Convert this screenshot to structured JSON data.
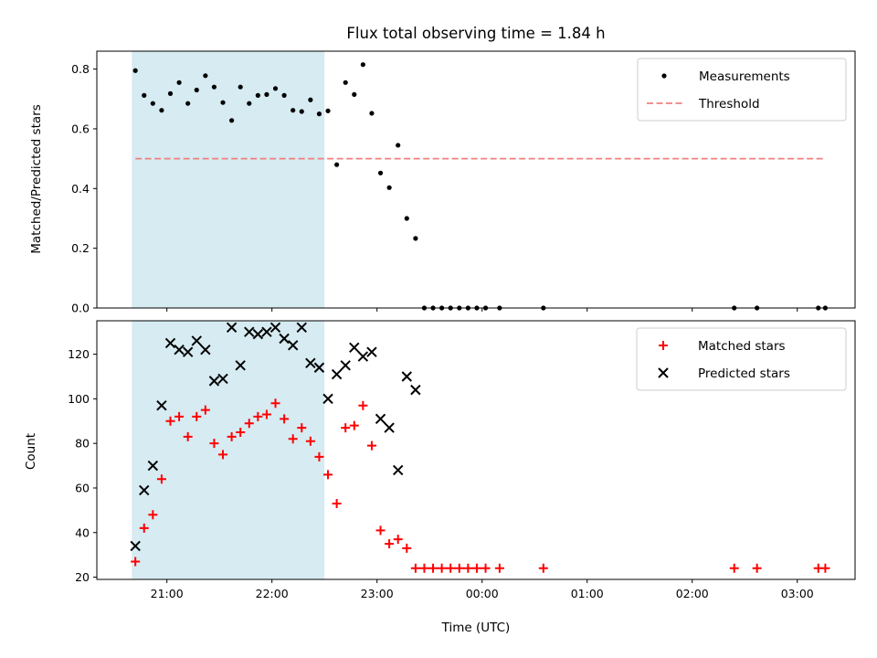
{
  "chart_data": [
    {
      "type": "scatter",
      "title": "Flux total observing time = 1.84 h",
      "xlabel": "",
      "ylabel": "Matched/Predicted stars",
      "ylim": [
        0,
        0.86
      ],
      "yticks": [
        "0.0",
        "0.2",
        "0.4",
        "0.6",
        "0.8"
      ],
      "shaded_region": {
        "x_start": "20:40",
        "x_end": "22:30",
        "color": "#add8e6"
      },
      "grid": false,
      "legend_position": "top-right",
      "series": [
        {
          "name": "Measurements",
          "marker": "dot",
          "color": "#000000",
          "points": [
            [
              "20:42",
              0.795
            ],
            [
              "20:47",
              0.712
            ],
            [
              "20:52",
              0.685
            ],
            [
              "20:57",
              0.662
            ],
            [
              "21:02",
              0.718
            ],
            [
              "21:07",
              0.755
            ],
            [
              "21:12",
              0.685
            ],
            [
              "21:17",
              0.73
            ],
            [
              "21:22",
              0.778
            ],
            [
              "21:27",
              0.74
            ],
            [
              "21:32",
              0.688
            ],
            [
              "21:37",
              0.628
            ],
            [
              "21:42",
              0.74
            ],
            [
              "21:47",
              0.685
            ],
            [
              "21:52",
              0.712
            ],
            [
              "21:57",
              0.715
            ],
            [
              "22:02",
              0.735
            ],
            [
              "22:07",
              0.712
            ],
            [
              "22:12",
              0.662
            ],
            [
              "22:17",
              0.658
            ],
            [
              "22:22",
              0.697
            ],
            [
              "22:27",
              0.65
            ],
            [
              "22:32",
              0.66
            ],
            [
              "22:37",
              0.48
            ],
            [
              "22:42",
              0.755
            ],
            [
              "22:47",
              0.715
            ],
            [
              "22:52",
              0.815
            ],
            [
              "22:57",
              0.652
            ],
            [
              "23:02",
              0.452
            ],
            [
              "23:07",
              0.403
            ],
            [
              "23:12",
              0.545
            ],
            [
              "23:17",
              0.3
            ],
            [
              "23:22",
              0.233
            ],
            [
              "23:27",
              0.0
            ],
            [
              "23:32",
              0.0
            ],
            [
              "23:37",
              0.0
            ],
            [
              "23:42",
              0.0
            ],
            [
              "23:47",
              0.0
            ],
            [
              "23:52",
              0.0
            ],
            [
              "23:57",
              0.0
            ],
            [
              "00:02",
              0.0
            ],
            [
              "00:10",
              0.0
            ],
            [
              "00:35",
              0.0
            ],
            [
              "02:24",
              0.0
            ],
            [
              "02:37",
              0.0
            ],
            [
              "03:12",
              0.0
            ],
            [
              "03:16",
              0.0
            ]
          ]
        },
        {
          "name": "Threshold",
          "marker": "dashed-line",
          "color": "#f08080",
          "points": [
            [
              "20:42",
              0.5
            ],
            [
              "03:16",
              0.5
            ]
          ]
        }
      ]
    },
    {
      "type": "scatter",
      "title": "",
      "xlabel": "Time (UTC)",
      "ylabel": "Count",
      "ylim": [
        19,
        135
      ],
      "yticks": [
        "20",
        "40",
        "60",
        "80",
        "100",
        "120"
      ],
      "xticks": [
        "21:00",
        "22:00",
        "23:00",
        "00:00",
        "01:00",
        "02:00",
        "03:00"
      ],
      "xlim": [
        "20:20",
        "03:33"
      ],
      "shaded_region": {
        "x_start": "20:40",
        "x_end": "22:30",
        "color": "#add8e6"
      },
      "grid": false,
      "legend_position": "top-right",
      "series": [
        {
          "name": "Matched stars",
          "marker": "plus",
          "color": "#ff0000",
          "points": [
            [
              "20:42",
              27
            ],
            [
              "20:47",
              42
            ],
            [
              "20:52",
              48
            ],
            [
              "20:57",
              64
            ],
            [
              "21:02",
              90
            ],
            [
              "21:07",
              92
            ],
            [
              "21:12",
              83
            ],
            [
              "21:17",
              92
            ],
            [
              "21:22",
              95
            ],
            [
              "21:27",
              80
            ],
            [
              "21:32",
              75
            ],
            [
              "21:37",
              83
            ],
            [
              "21:42",
              85
            ],
            [
              "21:47",
              89
            ],
            [
              "21:52",
              92
            ],
            [
              "21:57",
              93
            ],
            [
              "22:02",
              98
            ],
            [
              "22:07",
              91
            ],
            [
              "22:12",
              82
            ],
            [
              "22:17",
              87
            ],
            [
              "22:22",
              81
            ],
            [
              "22:27",
              74
            ],
            [
              "22:32",
              66
            ],
            [
              "22:37",
              53
            ],
            [
              "22:42",
              87
            ],
            [
              "22:47",
              88
            ],
            [
              "22:52",
              97
            ],
            [
              "22:57",
              79
            ],
            [
              "23:02",
              41
            ],
            [
              "23:07",
              35
            ],
            [
              "23:12",
              37
            ],
            [
              "23:17",
              33
            ],
            [
              "23:22",
              24
            ],
            [
              "23:27",
              24
            ],
            [
              "23:32",
              24
            ],
            [
              "23:37",
              24
            ],
            [
              "23:42",
              24
            ],
            [
              "23:47",
              24
            ],
            [
              "23:52",
              24
            ],
            [
              "23:57",
              24
            ],
            [
              "00:02",
              24
            ],
            [
              "00:10",
              24
            ],
            [
              "00:35",
              24
            ],
            [
              "02:24",
              24
            ],
            [
              "02:37",
              24
            ],
            [
              "03:12",
              24
            ],
            [
              "03:16",
              24
            ]
          ]
        },
        {
          "name": "Predicted stars",
          "marker": "x",
          "color": "#000000",
          "points": [
            [
              "20:42",
              34
            ],
            [
              "20:47",
              59
            ],
            [
              "20:52",
              70
            ],
            [
              "20:57",
              97
            ],
            [
              "21:02",
              125
            ],
            [
              "21:07",
              122
            ],
            [
              "21:12",
              121
            ],
            [
              "21:17",
              126
            ],
            [
              "21:22",
              122
            ],
            [
              "21:27",
              108
            ],
            [
              "21:32",
              109
            ],
            [
              "21:37",
              132
            ],
            [
              "21:42",
              115
            ],
            [
              "21:47",
              130
            ],
            [
              "21:52",
              129
            ],
            [
              "21:57",
              130
            ],
            [
              "22:02",
              132
            ],
            [
              "22:07",
              127
            ],
            [
              "22:12",
              124
            ],
            [
              "22:17",
              132
            ],
            [
              "22:22",
              116
            ],
            [
              "22:27",
              114
            ],
            [
              "22:32",
              100
            ],
            [
              "22:37",
              111
            ],
            [
              "22:42",
              115
            ],
            [
              "22:47",
              123
            ],
            [
              "22:52",
              119
            ],
            [
              "22:57",
              121
            ],
            [
              "23:02",
              91
            ],
            [
              "23:07",
              87
            ],
            [
              "23:12",
              68
            ],
            [
              "23:17",
              110
            ],
            [
              "23:22",
              104
            ]
          ]
        }
      ]
    }
  ]
}
